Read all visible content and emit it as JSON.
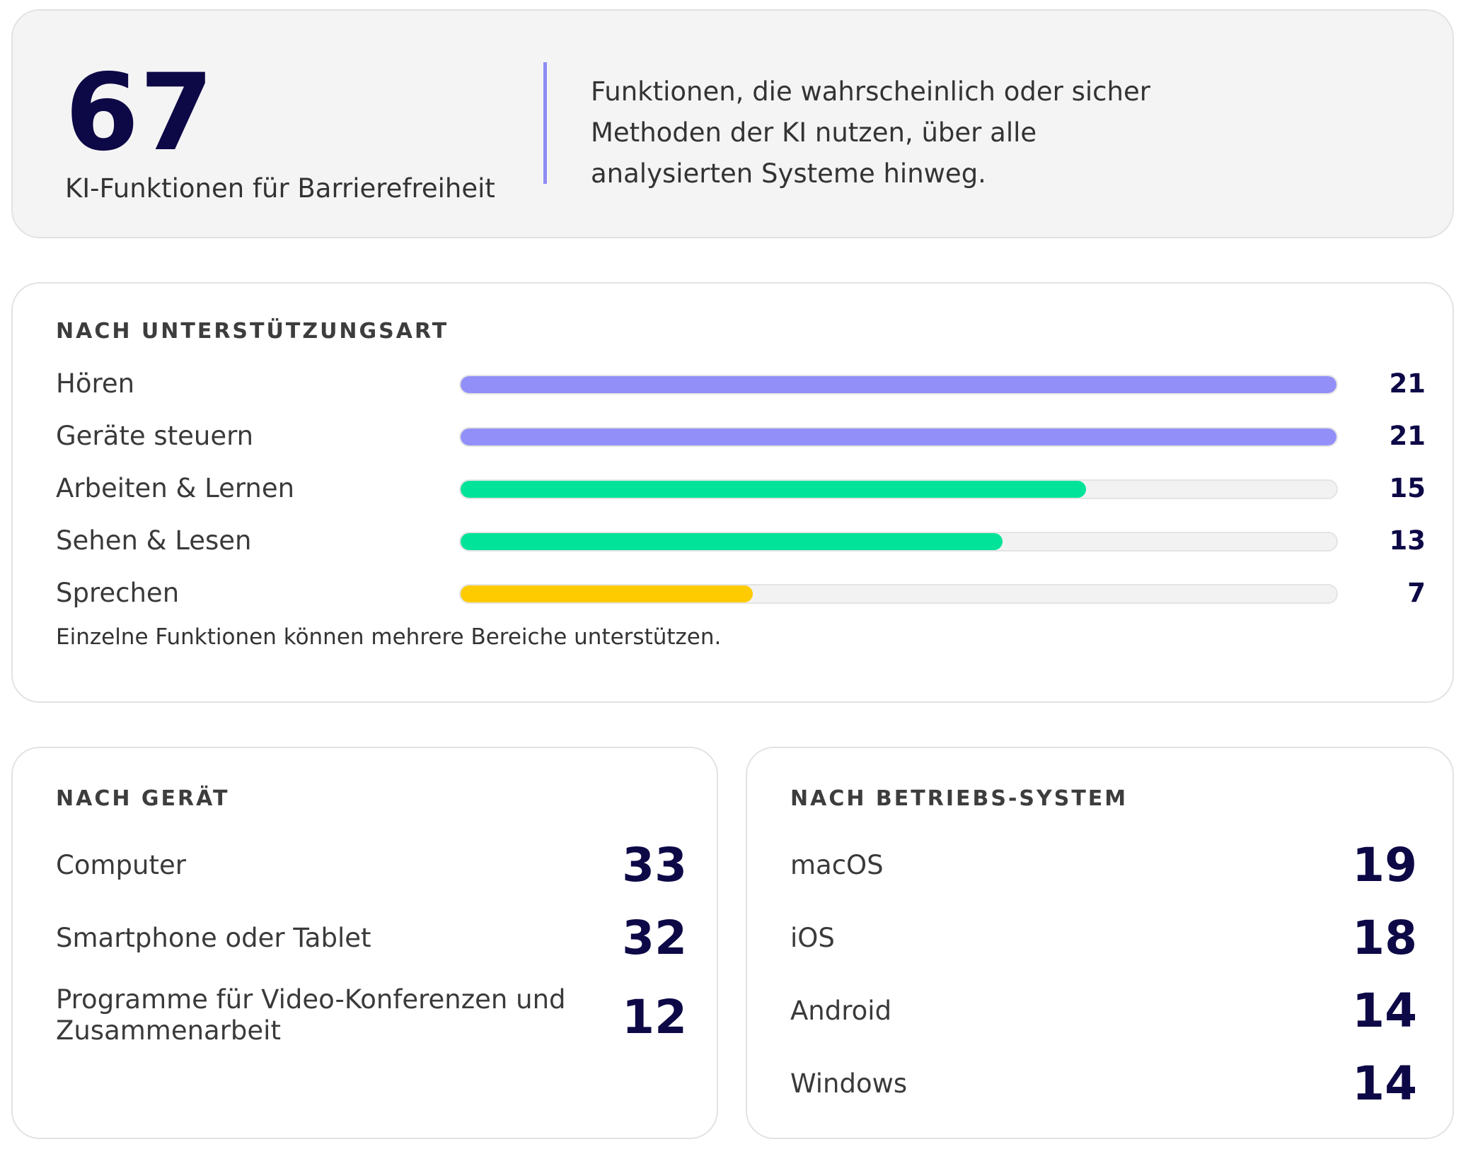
{
  "summary": {
    "number": "67",
    "label": "KI-Funktionen für Barrierefreiheit",
    "description_lines": [
      "Funktionen, die wahrscheinlich oder sicher",
      "Methoden der KI nutzen, über alle",
      "analysierten Systeme hinweg."
    ],
    "accent_color": "#8f8cf3",
    "number_color": "#0d0846"
  },
  "support": {
    "title": "NACH UNTERSTÜTZUNGSART",
    "max": 21,
    "items": [
      {
        "label": "Hören",
        "value": "21",
        "color": "#928ff9"
      },
      {
        "label": "Geräte steuern",
        "value": "21",
        "color": "#928ff9"
      },
      {
        "label": "Arbeiten & Lernen",
        "value": "15",
        "color": "#02e39a"
      },
      {
        "label": "Sehen & Lesen",
        "value": "13",
        "color": "#02e39a"
      },
      {
        "label": "Sprechen",
        "value": "7",
        "color": "#fecb00"
      }
    ],
    "note": "Einzelne Funktionen können mehrere Bereiche unterstützen."
  },
  "device": {
    "title": "NACH GERÄT",
    "items": [
      {
        "label": "Computer",
        "value": "33"
      },
      {
        "label": "Smartphone oder Tablet",
        "value": "32"
      },
      {
        "label_lines": [
          "Programme für Video-Konferenzen und",
          "Zusammenarbeit"
        ],
        "value": "12"
      }
    ]
  },
  "os": {
    "title": "NACH BETRIEBS-SYSTEM",
    "items": [
      {
        "label": "macOS",
        "value": "19"
      },
      {
        "label": "iOS",
        "value": "18"
      },
      {
        "label": "Android",
        "value": "14"
      },
      {
        "label": "Windows",
        "value": "14"
      }
    ]
  }
}
